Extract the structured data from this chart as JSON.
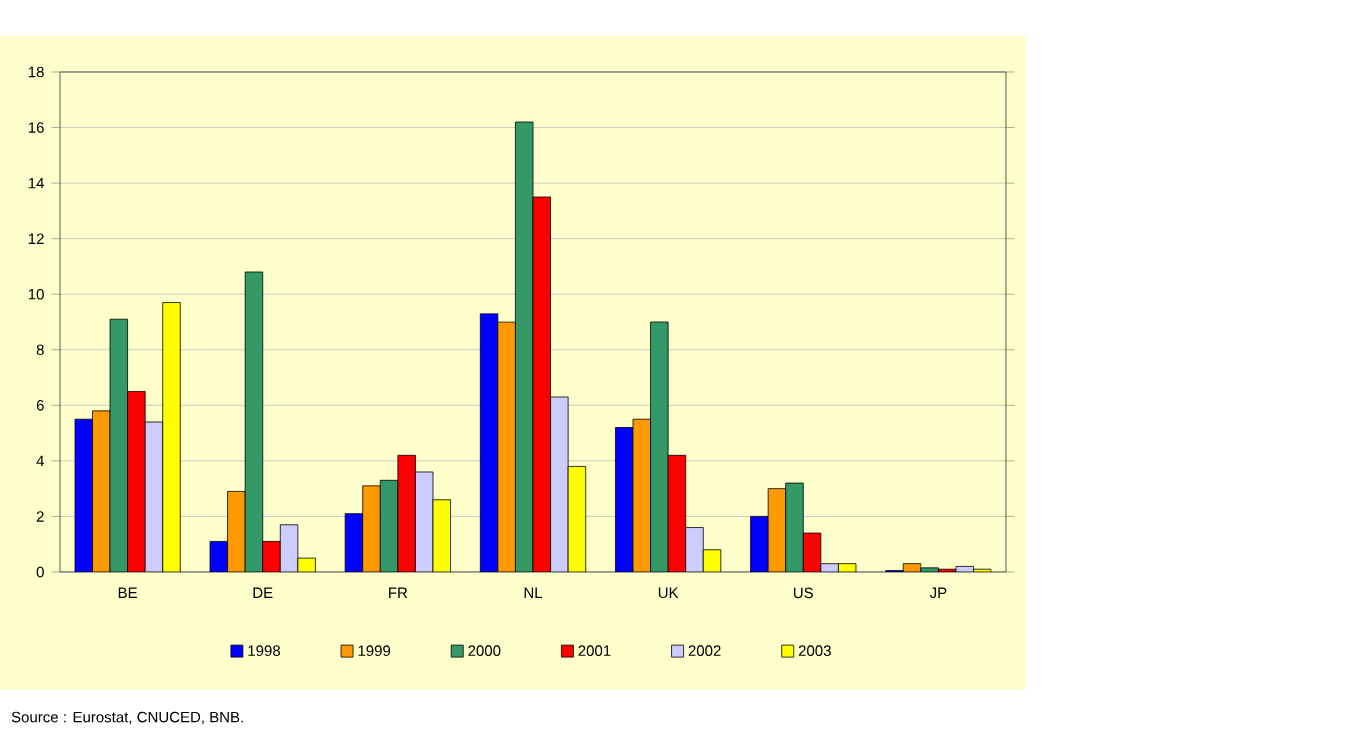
{
  "chart_data": {
    "type": "bar",
    "categories": [
      "BE",
      "DE",
      "FR",
      "NL",
      "UK",
      "US",
      "JP"
    ],
    "series": [
      {
        "name": "1998",
        "color": "#0000ff",
        "values": [
          5.5,
          1.1,
          2.1,
          9.3,
          5.2,
          2.0,
          0.05
        ]
      },
      {
        "name": "1999",
        "color": "#ff9900",
        "values": [
          5.8,
          2.9,
          3.1,
          9.0,
          5.5,
          3.0,
          0.3
        ]
      },
      {
        "name": "2000",
        "color": "#339966",
        "values": [
          9.1,
          10.8,
          3.3,
          16.2,
          9.0,
          3.2,
          0.15
        ]
      },
      {
        "name": "2001",
        "color": "#ff0000",
        "values": [
          6.5,
          1.1,
          4.2,
          13.5,
          4.2,
          1.4,
          0.1
        ]
      },
      {
        "name": "2002",
        "color": "#ccccff",
        "values": [
          5.4,
          1.7,
          3.6,
          6.3,
          1.6,
          0.3,
          0.2
        ]
      },
      {
        "name": "2003",
        "color": "#ffff00",
        "values": [
          9.7,
          0.5,
          2.6,
          3.8,
          0.8,
          0.3,
          0.1
        ]
      }
    ],
    "ylim": [
      0,
      18
    ],
    "yticks": [
      0,
      2,
      4,
      6,
      8,
      10,
      12,
      14,
      16,
      18
    ],
    "grid": "y",
    "legend": "bottom",
    "annotations": [
      "Source : Eurostat, CNUCED, BNB."
    ]
  }
}
